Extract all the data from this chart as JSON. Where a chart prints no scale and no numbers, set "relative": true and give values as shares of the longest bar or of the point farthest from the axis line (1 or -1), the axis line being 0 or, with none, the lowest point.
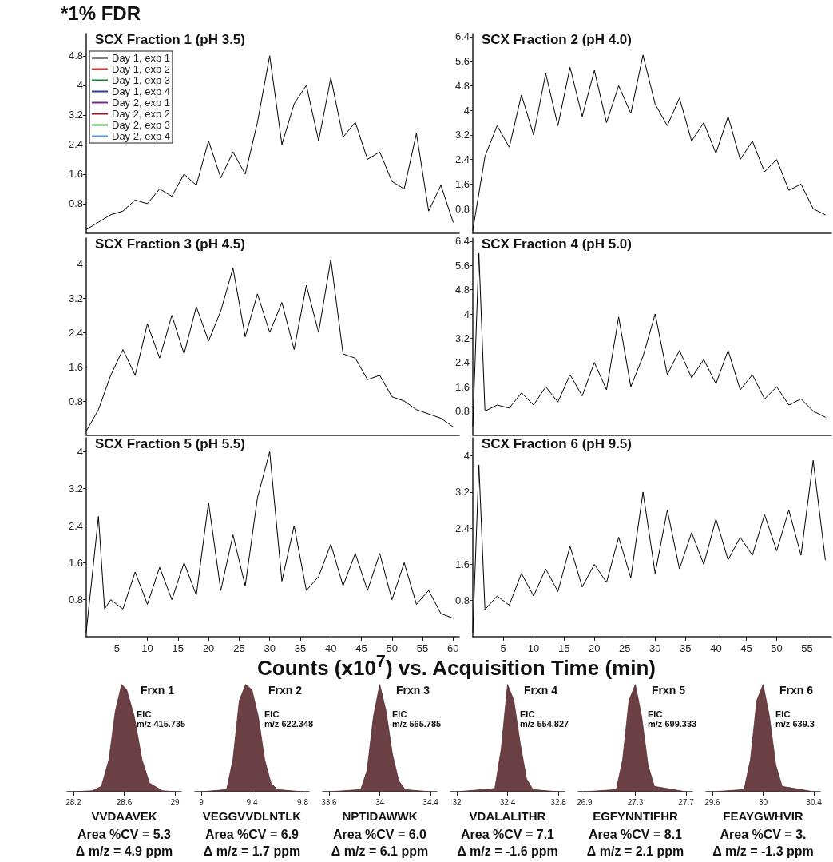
{
  "chart_data": [
    {
      "type": "line",
      "title": "SCX Fraction 1 (pH 3.5)",
      "annotations": [
        "*1% FDR"
      ],
      "legend": "top left",
      "tick_labels": "y",
      "xlim": [
        0,
        61
      ],
      "ylim": [
        0,
        5.4
      ],
      "yticks": [
        0.8,
        1.6,
        2.4,
        3.2,
        4.0,
        4.8
      ],
      "x": [
        0,
        2,
        4,
        6,
        8,
        10,
        12,
        14,
        16,
        18,
        20,
        22,
        24,
        26,
        28,
        30,
        32,
        34,
        36,
        38,
        40,
        42,
        44,
        46,
        48,
        50,
        52,
        54,
        56,
        58,
        60
      ],
      "series": [
        {
          "name": "Day 1, exp 1",
          "color": "#000000",
          "values": [
            0.1,
            0.3,
            0.5,
            0.6,
            0.9,
            0.8,
            1.2,
            1.0,
            1.6,
            1.3,
            2.5,
            1.5,
            2.2,
            1.6,
            3.0,
            4.8,
            2.4,
            3.5,
            4.0,
            2.5,
            4.2,
            2.6,
            3.0,
            2.0,
            2.2,
            1.4,
            1.2,
            2.7,
            0.6,
            1.3,
            0.3
          ]
        },
        {
          "name": "Day 1, exp 2",
          "color": "#e0312f",
          "values": [
            null,
            null,
            null,
            null,
            null,
            null,
            null,
            null,
            null,
            null,
            null,
            null,
            null,
            null,
            null,
            null,
            null,
            null,
            null,
            null,
            null,
            null,
            null,
            null,
            null,
            null,
            null,
            null,
            null,
            null,
            null
          ]
        },
        {
          "name": "Day 1, exp 3",
          "color": "#1f7a3a",
          "values": [
            null,
            null,
            null,
            null,
            null,
            null,
            null,
            null,
            null,
            null,
            null,
            null,
            null,
            null,
            null,
            null,
            null,
            null,
            null,
            null,
            null,
            null,
            null,
            null,
            null,
            null,
            null,
            null,
            null,
            null,
            null
          ]
        },
        {
          "name": "Day 1, exp 4",
          "color": "#2b3a99",
          "values": [
            null,
            null,
            null,
            null,
            null,
            null,
            null,
            null,
            null,
            null,
            null,
            null,
            null,
            null,
            null,
            null,
            null,
            null,
            null,
            null,
            null,
            null,
            null,
            null,
            null,
            null,
            null,
            null,
            null,
            null,
            null
          ]
        },
        {
          "name": "Day 2, exp 1",
          "color": "#6a2c8a",
          "values": [
            null,
            null,
            null,
            null,
            null,
            null,
            null,
            null,
            null,
            null,
            null,
            null,
            null,
            null,
            null,
            null,
            null,
            null,
            null,
            null,
            null,
            null,
            null,
            null,
            null,
            null,
            null,
            null,
            null,
            null,
            null
          ]
        },
        {
          "name": "Day 2, exp 2",
          "color": "#8b1a2b",
          "values": [
            null,
            null,
            null,
            null,
            null,
            null,
            null,
            null,
            null,
            null,
            null,
            null,
            null,
            null,
            null,
            null,
            null,
            null,
            null,
            null,
            null,
            null,
            null,
            null,
            null,
            null,
            null,
            null,
            null,
            null,
            null
          ]
        },
        {
          "name": "Day 2, exp 3",
          "color": "#4fae4f",
          "values": [
            null,
            null,
            null,
            null,
            null,
            null,
            null,
            null,
            null,
            null,
            null,
            null,
            null,
            null,
            null,
            null,
            null,
            null,
            null,
            null,
            null,
            null,
            null,
            null,
            null,
            null,
            null,
            null,
            null,
            null,
            null
          ]
        },
        {
          "name": "Day 2, exp 4",
          "color": "#5a8fd6",
          "values": [
            null,
            null,
            null,
            null,
            null,
            null,
            null,
            null,
            null,
            null,
            null,
            null,
            null,
            null,
            null,
            null,
            null,
            null,
            null,
            null,
            null,
            null,
            null,
            null,
            null,
            null,
            null,
            null,
            null,
            null,
            null
          ]
        }
      ]
    },
    {
      "type": "line",
      "title": "SCX Fraction 2 (pH 4.0)",
      "tick_labels": "y",
      "xlim": [
        0,
        59
      ],
      "ylim": [
        0,
        6.5
      ],
      "yticks": [
        0.8,
        1.6,
        2.4,
        3.2,
        4.0,
        4.8,
        5.6,
        6.4
      ],
      "x": [
        0,
        2,
        4,
        6,
        8,
        10,
        12,
        14,
        16,
        18,
        20,
        22,
        24,
        26,
        28,
        30,
        32,
        34,
        36,
        38,
        40,
        42,
        44,
        46,
        48,
        50,
        52,
        54,
        56,
        58
      ],
      "series": [
        {
          "color": "#000000",
          "values": [
            0.1,
            2.5,
            3.5,
            2.8,
            4.5,
            3.2,
            5.2,
            3.5,
            5.4,
            3.8,
            5.3,
            3.6,
            4.8,
            3.9,
            5.8,
            4.2,
            3.5,
            4.4,
            3.0,
            3.6,
            2.6,
            3.8,
            2.4,
            3.0,
            2.0,
            2.4,
            1.4,
            1.6,
            0.8,
            0.6
          ]
        }
      ]
    },
    {
      "type": "line",
      "title": "SCX Fraction 3 (pH 4.5)",
      "tick_labels": "y",
      "xlim": [
        0,
        61
      ],
      "ylim": [
        0,
        4.6
      ],
      "yticks": [
        0.8,
        1.6,
        2.4,
        3.2,
        4.0
      ],
      "x": [
        0,
        2,
        4,
        6,
        8,
        10,
        12,
        14,
        16,
        18,
        20,
        22,
        24,
        26,
        28,
        30,
        32,
        34,
        36,
        38,
        40,
        42,
        44,
        46,
        48,
        50,
        52,
        54,
        56,
        58,
        60
      ],
      "series": [
        {
          "color": "#000000",
          "values": [
            0.1,
            0.6,
            1.4,
            2.0,
            1.4,
            2.6,
            1.8,
            2.8,
            1.9,
            3.0,
            2.2,
            2.9,
            3.9,
            2.3,
            3.3,
            2.4,
            3.1,
            2.0,
            3.5,
            2.4,
            4.1,
            1.9,
            1.8,
            1.3,
            1.4,
            0.9,
            0.8,
            0.6,
            0.5,
            0.4,
            0.2
          ]
        }
      ]
    },
    {
      "type": "line",
      "title": "SCX Fraction 4 (pH 5.0)",
      "tick_labels": "y",
      "xlim": [
        0,
        59
      ],
      "ylim": [
        0,
        6.5
      ],
      "yticks": [
        0.8,
        1.6,
        2.4,
        3.2,
        4.0,
        4.8,
        5.6,
        6.4
      ],
      "x": [
        0,
        1,
        2,
        4,
        6,
        8,
        10,
        12,
        14,
        16,
        18,
        20,
        22,
        24,
        26,
        28,
        30,
        32,
        34,
        36,
        38,
        40,
        42,
        44,
        46,
        48,
        50,
        52,
        54,
        56,
        58
      ],
      "series": [
        {
          "color": "#000000",
          "values": [
            0.3,
            6.0,
            0.8,
            1.0,
            0.9,
            1.4,
            1.0,
            1.6,
            1.1,
            2.0,
            1.3,
            2.4,
            1.5,
            3.9,
            1.6,
            2.6,
            4.0,
            2.0,
            2.8,
            1.9,
            2.5,
            1.7,
            2.8,
            1.5,
            2.0,
            1.2,
            1.6,
            1.0,
            1.2,
            0.8,
            0.6
          ]
        }
      ]
    },
    {
      "type": "line",
      "title": "SCX Fraction 5 (pH 5.5)",
      "xlabel": "Counts (x10$^{7}$) vs. Acquisition Time (min)",
      "xlim": [
        0,
        61
      ],
      "ylim": [
        0,
        4.3
      ],
      "xticks": [
        5,
        10,
        15,
        20,
        25,
        30,
        35,
        40,
        45,
        50,
        55,
        60
      ],
      "yticks": [
        0.8,
        1.6,
        2.4,
        3.2,
        4.0
      ],
      "x": [
        0,
        2,
        3,
        4,
        6,
        8,
        10,
        12,
        14,
        16,
        18,
        20,
        22,
        24,
        26,
        28,
        30,
        32,
        34,
        36,
        38,
        40,
        42,
        44,
        46,
        48,
        50,
        52,
        54,
        56,
        58,
        60
      ],
      "series": [
        {
          "color": "#000000",
          "values": [
            0.1,
            2.6,
            0.6,
            0.8,
            0.6,
            1.4,
            0.7,
            1.5,
            0.8,
            1.6,
            0.9,
            2.9,
            1.0,
            2.2,
            1.1,
            3.0,
            4.0,
            1.2,
            2.4,
            1.0,
            1.3,
            2.0,
            1.1,
            1.8,
            1.0,
            1.8,
            0.8,
            1.6,
            0.7,
            1.0,
            0.5,
            0.4
          ]
        }
      ]
    },
    {
      "type": "line",
      "title": "SCX Fraction 6 (pH 9.5)",
      "xlim": [
        0,
        59
      ],
      "ylim": [
        0,
        4.4
      ],
      "xticks": [
        5,
        10,
        15,
        20,
        25,
        30,
        35,
        40,
        45,
        50,
        55
      ],
      "yticks": [
        0.8,
        1.6,
        2.4,
        3.2,
        4.0
      ],
      "x": [
        0,
        1,
        2,
        4,
        6,
        8,
        10,
        12,
        14,
        16,
        18,
        20,
        22,
        24,
        26,
        28,
        30,
        32,
        34,
        36,
        38,
        40,
        42,
        44,
        46,
        48,
        50,
        52,
        54,
        56,
        58
      ],
      "series": [
        {
          "color": "#000000",
          "values": [
            0.1,
            3.8,
            0.6,
            0.9,
            0.7,
            1.4,
            0.9,
            1.5,
            1.0,
            2.0,
            1.1,
            1.6,
            1.2,
            2.2,
            1.3,
            3.2,
            1.4,
            2.8,
            1.5,
            2.3,
            1.6,
            2.6,
            1.7,
            2.2,
            1.8,
            2.7,
            1.9,
            2.8,
            1.8,
            3.9,
            1.7
          ]
        }
      ]
    },
    {
      "type": "area",
      "relative": true,
      "title": "Frxn 1",
      "xlabel": "VVDAAVEK",
      "annotations": [
        "EIC",
        "m/z 415.735",
        "Area %CV = 5.3",
        "Δ m/z = 4.9 ppm"
      ],
      "tick_labels": "x",
      "xlim": [
        28.15,
        29.05
      ],
      "xticks": [
        28.2,
        28.6,
        29.0
      ],
      "x": [
        28.2,
        28.35,
        28.42,
        28.48,
        28.53,
        28.58,
        28.62,
        28.68,
        28.74,
        28.8,
        28.9,
        29.0
      ],
      "series": [
        {
          "color": "#5b2b30",
          "values": [
            0,
            0.01,
            0.05,
            0.3,
            0.75,
            1,
            0.95,
            0.7,
            0.3,
            0.08,
            0.01,
            0
          ]
        }
      ]
    },
    {
      "type": "area",
      "relative": true,
      "title": "Frxn 2",
      "xlabel": "VEGGVVDLNTLK",
      "annotations": [
        "EIC",
        "m/z 622.348",
        "Area %CV = 6.9",
        "Δ m/z = 1.7 ppm"
      ],
      "tick_labels": "x",
      "xlim": [
        8.95,
        9.85
      ],
      "xticks": [
        9.0,
        9.4,
        9.8
      ],
      "x": [
        9.0,
        9.2,
        9.25,
        9.3,
        9.35,
        9.4,
        9.45,
        9.5,
        9.55,
        9.6,
        9.8
      ],
      "series": [
        {
          "color": "#5b2b30",
          "values": [
            0,
            0.02,
            0.3,
            0.85,
            1,
            0.95,
            0.7,
            0.3,
            0.08,
            0.02,
            0
          ]
        }
      ]
    },
    {
      "type": "area",
      "relative": true,
      "title": "Frxn 3",
      "xlabel": "NPTIDAWWK",
      "annotations": [
        "EIC",
        "m/z 565.785",
        "Area %CV = 6.0",
        "Δ m/z = 6.1 ppm"
      ],
      "tick_labels": "x",
      "xlim": [
        33.55,
        34.45
      ],
      "xticks": [
        33.6,
        34.0,
        34.4
      ],
      "x": [
        33.6,
        33.85,
        33.9,
        33.95,
        34.0,
        34.05,
        34.1,
        34.15,
        34.2,
        34.4
      ],
      "series": [
        {
          "color": "#5b2b30",
          "values": [
            0,
            0.02,
            0.2,
            0.7,
            1,
            0.75,
            0.35,
            0.1,
            0.02,
            0
          ]
        }
      ]
    },
    {
      "type": "area",
      "relative": true,
      "title": "Frxn 4",
      "xlabel": "VDALALITHR",
      "annotations": [
        "EIC",
        "m/z 554.827",
        "Area %CV = 7.1",
        "Δ m/z = -1.6 ppm"
      ],
      "tick_labels": "x",
      "xlim": [
        31.95,
        32.85
      ],
      "xticks": [
        32.0,
        32.4,
        32.8
      ],
      "x": [
        32.0,
        32.3,
        32.35,
        32.4,
        32.45,
        32.5,
        32.55,
        32.6,
        32.8
      ],
      "series": [
        {
          "color": "#5b2b30",
          "values": [
            0,
            0.03,
            0.4,
            1,
            0.85,
            0.45,
            0.12,
            0.02,
            0
          ]
        }
      ]
    },
    {
      "type": "area",
      "relative": true,
      "title": "Frxn 5",
      "xlabel": "EGFYNNTIFHR",
      "annotations": [
        "EIC",
        "m/z 699.333",
        "Area %CV = 8.1",
        "Δ m/z = 2.1 ppm"
      ],
      "tick_labels": "x",
      "xlim": [
        26.85,
        27.75
      ],
      "xticks": [
        26.9,
        27.3,
        27.7
      ],
      "x": [
        26.9,
        27.15,
        27.2,
        27.25,
        27.3,
        27.35,
        27.4,
        27.45,
        27.7
      ],
      "series": [
        {
          "color": "#5b2b30",
          "values": [
            0,
            0.02,
            0.3,
            0.85,
            1,
            0.7,
            0.25,
            0.05,
            0
          ]
        }
      ]
    },
    {
      "type": "area",
      "relative": true,
      "title": "Frxn 6",
      "xlabel": "FEAYGWHVIR",
      "annotations": [
        "EIC",
        "m/z 639.3",
        "Area %CV = 3.",
        "Δ m/z = -1.3 ppm"
      ],
      "tick_labels": "x",
      "xlim": [
        29.55,
        30.45
      ],
      "xticks": [
        29.6,
        30.0,
        30.4
      ],
      "x": [
        29.6,
        29.85,
        29.9,
        29.95,
        30.0,
        30.05,
        30.1,
        30.15,
        30.4
      ],
      "series": [
        {
          "color": "#5b2b30",
          "values": [
            0,
            0.02,
            0.3,
            0.85,
            1,
            0.7,
            0.25,
            0.05,
            0
          ]
        }
      ]
    }
  ]
}
